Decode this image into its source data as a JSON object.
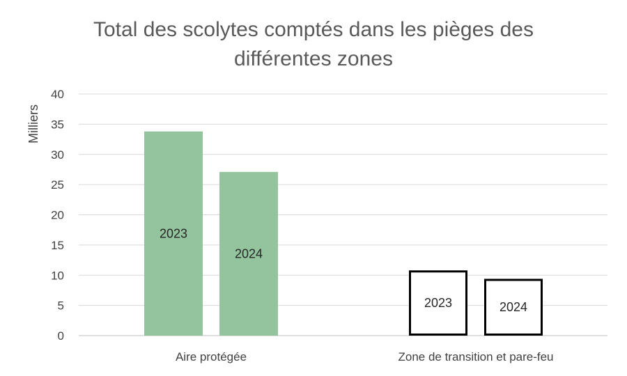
{
  "chart_data": {
    "type": "bar",
    "title": [
      "Total des scolytes comptés dans les pièges des",
      "différentes zones"
    ],
    "ylabel": "Milliers",
    "xlabel": "",
    "ylim": [
      0,
      40
    ],
    "yticks": [
      0,
      5,
      10,
      15,
      20,
      25,
      30,
      35,
      40
    ],
    "grid": true,
    "categories": [
      "Aire protégée",
      "Zone de transition et pare-feu"
    ],
    "series": [
      {
        "name": "2023",
        "values": [
          33.8,
          10.8
        ]
      },
      {
        "name": "2024",
        "values": [
          27.1,
          9.4
        ]
      }
    ],
    "colors": {
      "aire": "#93c49e",
      "zone_fill": "#ffffff",
      "zone_stroke": "#000000",
      "grid": "#d9d9d9"
    }
  }
}
